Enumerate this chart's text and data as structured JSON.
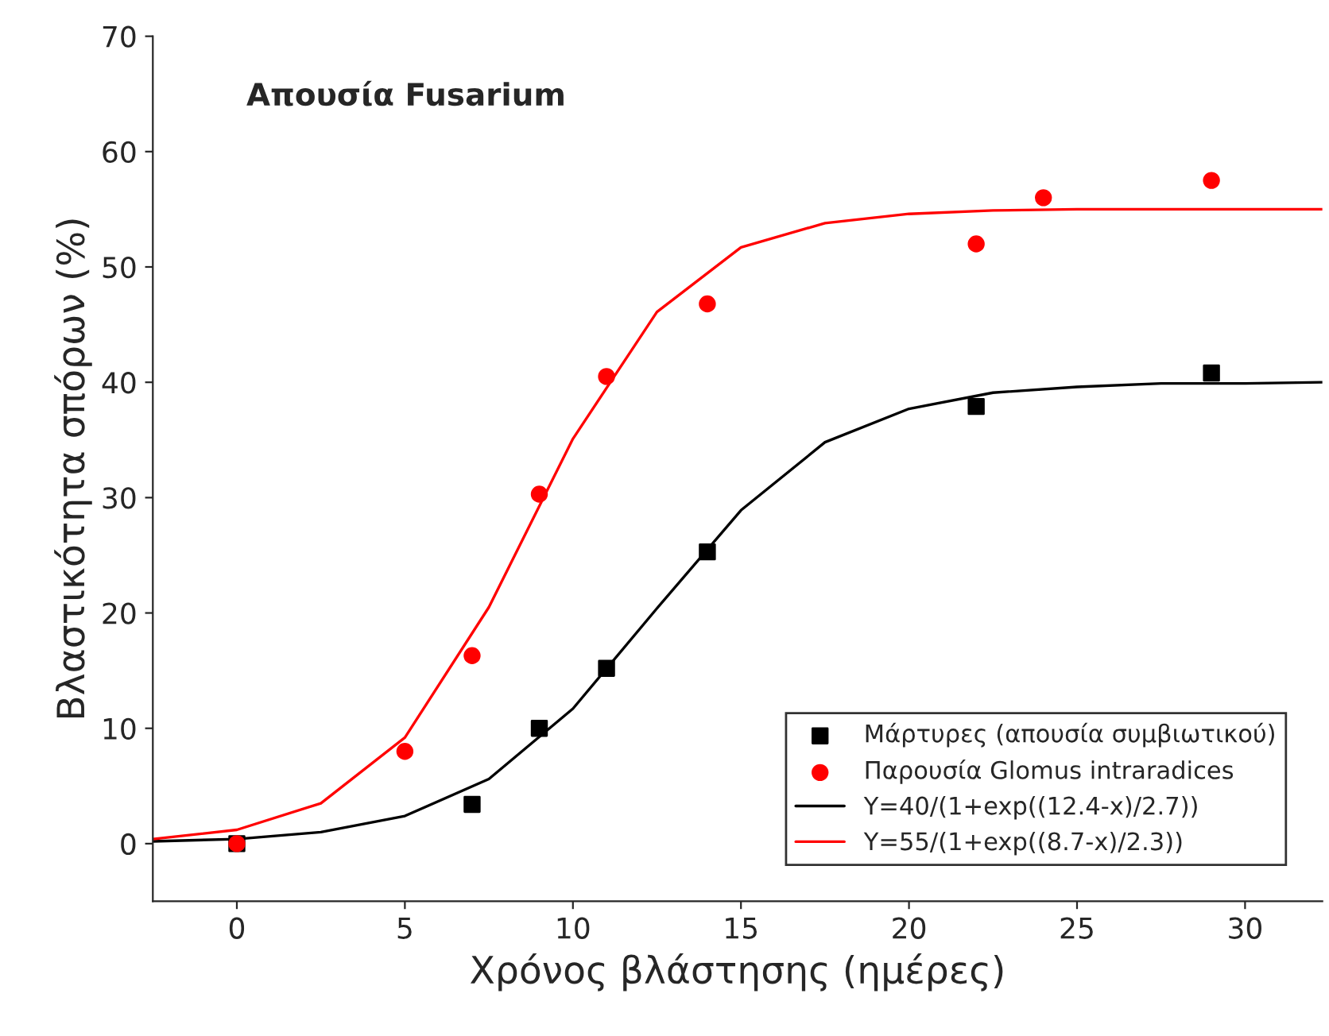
{
  "chart_data": {
    "type": "scatter",
    "xlabel": "Χρόνος βλάστησης (ημέρες)",
    "ylabel": "Βλαστικότητα σπόρων (%)",
    "annotations": [
      "Απουσία Fusarium"
    ],
    "xlim": [
      -2.5,
      32.3
    ],
    "ylim": [
      -5,
      70
    ],
    "xticks": [
      0,
      5,
      10,
      15,
      20,
      25,
      30
    ],
    "yticks": [
      0,
      10,
      20,
      30,
      40,
      50,
      60,
      70
    ],
    "grid": false,
    "legend": "bottom right",
    "series": [
      {
        "name": "Μάρτυρες (απουσία συμβιωτικού)",
        "marker": "square",
        "color": "#000000",
        "x": [
          0,
          7,
          9,
          11,
          14,
          22,
          29
        ],
        "values": [
          0,
          3.4,
          10,
          15.2,
          25.3,
          37.9,
          40.8
        ]
      },
      {
        "name": "Παρουσία Glomus intraradices",
        "marker": "circle",
        "color": "#ff0000",
        "x": [
          0,
          5,
          7,
          9,
          11,
          14,
          22,
          24,
          29
        ],
        "values": [
          0,
          8,
          16.3,
          30.3,
          40.5,
          46.8,
          52,
          56,
          57.5
        ]
      },
      {
        "name": "Y=40/(1+exp((12.4-x)/2.7))",
        "type": "line",
        "color": "#000000",
        "x": [
          -2.5,
          0,
          2.5,
          5,
          7.5,
          10,
          12.5,
          15,
          17.5,
          20,
          22.5,
          25,
          27.5,
          30,
          32.3
        ],
        "values": [
          0.2,
          0.4,
          1,
          2.4,
          5.6,
          11.7,
          20.4,
          28.9,
          34.8,
          37.7,
          39.1,
          39.6,
          39.9,
          39.9,
          40
        ]
      },
      {
        "name": "Y=55/(1+exp((8.7-x)/2.3))",
        "type": "line",
        "color": "#ff0000",
        "x": [
          -2.5,
          0,
          2.5,
          5,
          7.5,
          10,
          12.5,
          15,
          17.5,
          20,
          22.5,
          25,
          27.5,
          30,
          32.3
        ],
        "values": [
          0.4,
          1.2,
          3.5,
          9.2,
          20.5,
          35.1,
          46.1,
          51.7,
          53.8,
          54.6,
          54.9,
          55,
          55,
          55,
          55
        ]
      }
    ]
  }
}
